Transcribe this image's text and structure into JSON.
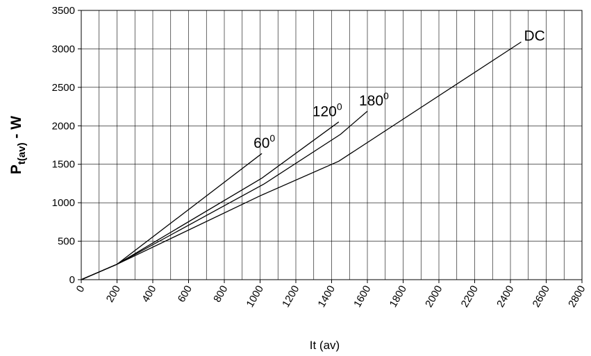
{
  "chart_data": {
    "type": "line",
    "xlabel": "It (av)",
    "ylabel": {
      "base": "P",
      "subscript": "t(av)",
      "suffix": " - W"
    },
    "xlim": [
      0,
      2800
    ],
    "ylim": [
      0,
      3500
    ],
    "x_ticks": [
      0,
      100,
      200,
      300,
      400,
      500,
      600,
      700,
      800,
      900,
      1000,
      1100,
      1200,
      1300,
      1400,
      1500,
      1600,
      1700,
      1800,
      1900,
      2000,
      2100,
      2200,
      2300,
      2400,
      2500,
      2600,
      2700,
      2800
    ],
    "x_tick_labels": [
      "0",
      "200",
      "400",
      "600",
      "800",
      "1000",
      "1200",
      "1400",
      "1600",
      "1800",
      "2000",
      "2200",
      "2400",
      "2600",
      "2800"
    ],
    "y_ticks": [
      0,
      500,
      1000,
      1500,
      2000,
      2500,
      3000,
      3500
    ],
    "y_tick_labels": [
      "0",
      "500",
      "1000",
      "1500",
      "2000",
      "2500",
      "3000",
      "3500"
    ],
    "grid": true,
    "line_color": "#000000",
    "series": [
      {
        "name": "60",
        "sup": "0",
        "x": [
          0,
          200,
          1010
        ],
        "y": [
          0,
          200,
          1640
        ]
      },
      {
        "name": "120",
        "sup": "0",
        "x": [
          0,
          200,
          1010,
          1440
        ],
        "y": [
          0,
          200,
          1320,
          2050
        ]
      },
      {
        "name": "180",
        "sup": "0",
        "x": [
          0,
          200,
          1020,
          1450,
          1600
        ],
        "y": [
          0,
          200,
          1240,
          1890,
          2190
        ]
      },
      {
        "name": "DC",
        "sup": "",
        "x": [
          0,
          200,
          1000,
          1440,
          2460
        ],
        "y": [
          0,
          200,
          1090,
          1540,
          3090
        ]
      }
    ]
  }
}
